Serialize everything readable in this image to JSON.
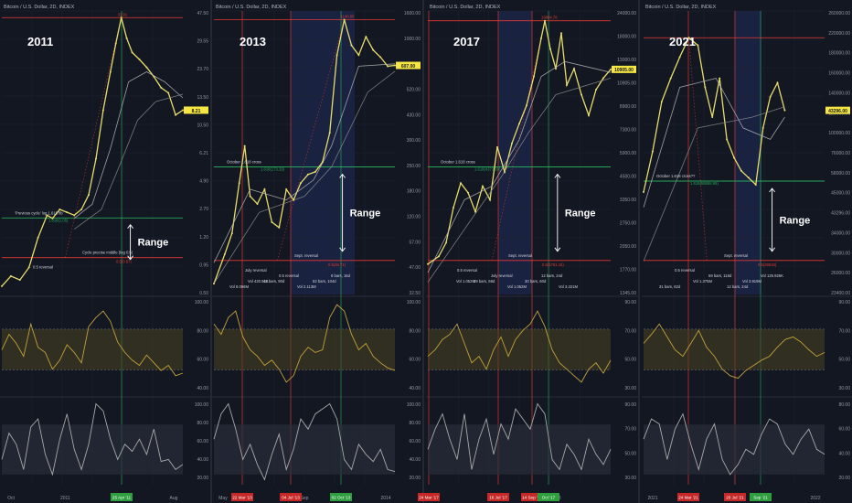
{
  "page": {
    "background": "#131722",
    "grid": "#1e2230"
  },
  "colors": {
    "price": "#e8dc6a",
    "ma_fast": "#b9b9b9",
    "ma_slow": "#8a8a8a",
    "rsi": "#c2a13a",
    "stoch": "#a9a9a9",
    "green_line": "#26a65b",
    "red_line": "#e53935",
    "highlight_band": "#1c2447",
    "rsi_band": "#4a4320",
    "stoch_band": "#2a2e39",
    "date_red": "#c62828",
    "date_green": "#2e9e3e"
  },
  "chart_data": [
    {
      "type": "line",
      "panel": "2011",
      "header": "Bitcoin / U.S. Dollar, 2D, INDEX",
      "year_label": "2011",
      "range_label": "Range",
      "price_axis": [
        "47.50",
        "29.55",
        "23.70",
        "13.50",
        "10.50",
        "6.21",
        "4.90",
        "2.70",
        "1.20",
        "0.95",
        "0.50"
      ],
      "price_tag": "8.21",
      "annotations": [
        "'Previous cycle' log 1.618 fib",
        "1.618(1.05)",
        "Cycle precise middle (log 0.5)",
        "0.5(0.57)",
        "0.5 reversal",
        "31.91"
      ],
      "rsi_axis": [
        "100.00",
        "80.00",
        "60.00",
        "40.00"
      ],
      "stoch_axis": [
        "100.00",
        "80.00",
        "60.00",
        "40.00",
        "20.00"
      ],
      "time_axis": [
        "Oct",
        "2011",
        "Mar",
        "Aug"
      ],
      "date_highlight": "25 Apr '11",
      "y_log_scale": true,
      "series": [
        {
          "name": "Price",
          "points": [
            [
              0,
              0.25
            ],
            [
              5,
              0.3
            ],
            [
              10,
              0.28
            ],
            [
              15,
              0.35
            ],
            [
              20,
              0.6
            ],
            [
              25,
              0.9
            ],
            [
              28,
              0.85
            ],
            [
              32,
              1.0
            ],
            [
              36,
              0.95
            ],
            [
              40,
              0.9
            ],
            [
              44,
              1.0
            ],
            [
              48,
              1.3
            ],
            [
              52,
              2.5
            ],
            [
              56,
              6.0
            ],
            [
              60,
              12.0
            ],
            [
              63,
              20.0
            ],
            [
              66,
              31.91
            ],
            [
              69,
              22.0
            ],
            [
              72,
              17.0
            ],
            [
              76,
              15.0
            ],
            [
              80,
              13.0
            ],
            [
              84,
              11.0
            ],
            [
              88,
              9.0
            ],
            [
              92,
              8.21
            ],
            [
              96,
              5.5
            ],
            [
              100,
              6.0
            ]
          ]
        },
        {
          "name": "MA fast",
          "points": [
            [
              40,
              0.85
            ],
            [
              50,
              1.1
            ],
            [
              60,
              3.0
            ],
            [
              70,
              10.0
            ],
            [
              80,
              12.0
            ],
            [
              90,
              10.0
            ],
            [
              100,
              7.5
            ]
          ]
        },
        {
          "name": "MA slow",
          "points": [
            [
              40,
              0.7
            ],
            [
              55,
              1.0
            ],
            [
              65,
              2.2
            ],
            [
              75,
              5.0
            ],
            [
              85,
              7.0
            ],
            [
              100,
              8.0
            ]
          ]
        }
      ],
      "rsi": [
        60,
        72,
        65,
        55,
        80,
        62,
        58,
        45,
        52,
        64,
        58,
        50,
        78,
        85,
        90,
        82,
        66,
        58,
        52,
        48,
        56,
        50,
        44,
        48,
        40,
        42
      ],
      "stoch": [
        40,
        66,
        55,
        30,
        72,
        80,
        45,
        25,
        60,
        85,
        50,
        30,
        55,
        95,
        88,
        60,
        40,
        55,
        48,
        60,
        45,
        70,
        38,
        40,
        30,
        35
      ]
    },
    {
      "type": "line",
      "panel": "2013",
      "header": "Bitcoin / U.S. Dollar, 2D, INDEX",
      "year_label": "2013",
      "range_label": "Range",
      "price_axis": [
        "1600.00",
        "1000.00",
        "607.00",
        "520.00",
        "430.00",
        "300.00",
        "250.00",
        "180.00",
        "120.00",
        "57.00",
        "47.00",
        "32.50"
      ],
      "price_tag": "607.00",
      "annotations": [
        "October 1.618 cross",
        "1.618(173.29)",
        "Sept. reversal",
        "0.5(46.71)",
        "July reversal",
        "0.5 reversal",
        "52 bars, 104d",
        "Vol 8.096M",
        "45 bars, 90d",
        "Vol 2.113M",
        "8 bars, 16d",
        "Vol 420.91K",
        "1140.00"
      ],
      "rsi_axis": [
        "100.00",
        "80.00",
        "60.00",
        "40.00"
      ],
      "stoch_axis": [
        "100.00",
        "80.00",
        "60.00",
        "40.00",
        "20.00"
      ],
      "time_axis": [
        "May",
        "Sep",
        "2014"
      ],
      "date_highlights": [
        "22 Mar '13",
        "04 Jul '13",
        "02 Oct '13"
      ],
      "y_log_scale": true,
      "series": [
        {
          "name": "Price",
          "points": [
            [
              0,
              30
            ],
            [
              6,
              45
            ],
            [
              10,
              60
            ],
            [
              14,
              120
            ],
            [
              17,
              200
            ],
            [
              20,
              100
            ],
            [
              24,
              90
            ],
            [
              28,
              110
            ],
            [
              32,
              70
            ],
            [
              36,
              65
            ],
            [
              40,
              110
            ],
            [
              44,
              95
            ],
            [
              48,
              120
            ],
            [
              52,
              135
            ],
            [
              56,
              140
            ],
            [
              60,
              160
            ],
            [
              64,
              240
            ],
            [
              68,
              700
            ],
            [
              72,
              1140
            ],
            [
              76,
              800
            ],
            [
              80,
              700
            ],
            [
              84,
              900
            ],
            [
              88,
              750
            ],
            [
              92,
              680
            ],
            [
              96,
              600
            ],
            [
              100,
              607
            ]
          ]
        },
        {
          "name": "MA fast",
          "points": [
            [
              0,
              40
            ],
            [
              20,
              110
            ],
            [
              40,
              95
            ],
            [
              55,
              125
            ],
            [
              65,
              200
            ],
            [
              80,
              600
            ],
            [
              100,
              620
            ]
          ]
        },
        {
          "name": "MA slow",
          "points": [
            [
              0,
              30
            ],
            [
              25,
              80
            ],
            [
              50,
              100
            ],
            [
              65,
              150
            ],
            [
              85,
              420
            ],
            [
              100,
              560
            ]
          ]
        }
      ],
      "rsi": [
        80,
        72,
        85,
        90,
        70,
        60,
        55,
        48,
        52,
        45,
        35,
        40,
        55,
        62,
        58,
        60,
        85,
        95,
        90,
        72,
        60,
        65,
        55,
        50,
        46,
        44
      ],
      "stoch": [
        60,
        85,
        95,
        70,
        40,
        55,
        35,
        20,
        45,
        65,
        30,
        50,
        80,
        70,
        85,
        90,
        95,
        80,
        40,
        30,
        55,
        45,
        38,
        50,
        30,
        28
      ]
    },
    {
      "type": "line",
      "panel": "2017",
      "header": "Bitcoin / U.S. Dollar, 2D, INDEX",
      "year_label": "2017",
      "range_label": "Range",
      "price_axis": [
        "24000.00",
        "18000.00",
        "13000.00",
        "10905.00",
        "8900.00",
        "7300.00",
        "5900.00",
        "4500.00",
        "3350.00",
        "2750.00",
        "2050.00",
        "1770.00",
        "1345.00"
      ],
      "price_tag": "10905.00",
      "annotations": [
        "October 1.618 cross",
        "1.618(4373.29)",
        "Sept. reversal",
        "0.5(1791.15)",
        "0.5 reversal",
        "July reversal",
        "30 bars, 60d",
        "Vol 3.221M",
        "29 bars, 58d",
        "Vol 1.052M",
        "12 bars, 24d",
        "Vol 1.052M",
        "19804.78"
      ],
      "rsi_axis": [
        "90.00",
        "70.00",
        "50.00",
        "30.00"
      ],
      "stoch_axis": [
        "90.00",
        "70.00",
        "50.00",
        "30.00"
      ],
      "time_axis": [
        "2018"
      ],
      "date_highlights": [
        "24 Mar '17",
        "16 Jul '17",
        "14 Sep '17",
        "Oct '17"
      ],
      "y_log_scale": true,
      "series": [
        {
          "name": "Price",
          "points": [
            [
              0,
              1000
            ],
            [
              6,
              1100
            ],
            [
              10,
              1300
            ],
            [
              14,
              2000
            ],
            [
              18,
              2700
            ],
            [
              22,
              2400
            ],
            [
              26,
              1900
            ],
            [
              30,
              2600
            ],
            [
              34,
              2200
            ],
            [
              38,
              4200
            ],
            [
              42,
              3100
            ],
            [
              46,
              4400
            ],
            [
              50,
              5600
            ],
            [
              54,
              7000
            ],
            [
              58,
              10000
            ],
            [
              62,
              16000
            ],
            [
              64,
              19804.78
            ],
            [
              67,
              14000
            ],
            [
              70,
              11000
            ],
            [
              73,
              17000
            ],
            [
              76,
              9000
            ],
            [
              80,
              11000
            ],
            [
              84,
              8000
            ],
            [
              88,
              6200
            ],
            [
              92,
              8500
            ],
            [
              96,
              9800
            ],
            [
              100,
              10905
            ]
          ]
        },
        {
          "name": "MA fast",
          "points": [
            [
              0,
              900
            ],
            [
              20,
              2200
            ],
            [
              35,
              2600
            ],
            [
              50,
              4600
            ],
            [
              62,
              10000
            ],
            [
              75,
              12000
            ],
            [
              100,
              10500
            ]
          ]
        },
        {
          "name": "MA slow",
          "points": [
            [
              0,
              800
            ],
            [
              25,
              1800
            ],
            [
              40,
              2900
            ],
            [
              55,
              5000
            ],
            [
              70,
              8000
            ],
            [
              100,
              9800
            ]
          ]
        }
      ],
      "rsi": [
        55,
        60,
        68,
        72,
        80,
        65,
        50,
        55,
        45,
        60,
        70,
        55,
        68,
        75,
        80,
        90,
        78,
        60,
        50,
        45,
        40,
        35,
        45,
        50,
        42,
        52
      ],
      "stoch": [
        50,
        70,
        85,
        60,
        40,
        85,
        30,
        60,
        80,
        45,
        75,
        60,
        90,
        80,
        70,
        95,
        85,
        40,
        30,
        55,
        45,
        30,
        60,
        45,
        35,
        50
      ]
    },
    {
      "type": "line",
      "panel": "2021",
      "header": "Bitcoin / U.S. Dollar, 2D, INDEX",
      "year_label": "2021",
      "range_label": "Range",
      "price_axis": [
        "260000.00",
        "220000.00",
        "180000.00",
        "160000.00",
        "140000.00",
        "120000.00",
        "100000.00",
        "76000.00",
        "58000.00",
        "45000.00",
        "43296.00",
        "34000.00",
        "30000.00",
        "26000.00",
        "23400.00"
      ],
      "price_tag": "43296.00",
      "annotations": [
        "October 1.618 cross??",
        "1.618(58866.95)",
        "Sept. reversal",
        "0.5(28918)",
        "0.5 reversal",
        "59 bars, 118d",
        "Vol 3.919M",
        "31 bars, 62d",
        "Vol 1.375M",
        "12 bars, 24d",
        "Vol 125.926K"
      ],
      "rsi_axis": [
        "90.00",
        "70.00",
        "50.00",
        "30.00"
      ],
      "stoch_axis": [
        "80.00",
        "60.00",
        "40.00",
        "20.00"
      ],
      "time_axis": [
        "2021",
        "2022"
      ],
      "date_highlights": [
        "24 Mar '21",
        "20 Jul '21",
        "Sep '21"
      ],
      "y_log_scale": true,
      "series": [
        {
          "name": "Price",
          "points": [
            [
              0,
              30000
            ],
            [
              5,
              36000
            ],
            [
              10,
              45000
            ],
            [
              15,
              50000
            ],
            [
              20,
              55000
            ],
            [
              25,
              60000
            ],
            [
              30,
              58000
            ],
            [
              34,
              48000
            ],
            [
              38,
              42000
            ],
            [
              42,
              50000
            ],
            [
              46,
              38000
            ],
            [
              50,
              35000
            ],
            [
              54,
              33000
            ],
            [
              58,
              32000
            ],
            [
              62,
              31000
            ],
            [
              66,
              40000
            ],
            [
              70,
              46000
            ],
            [
              74,
              49000
            ],
            [
              78,
              43296
            ]
          ]
        },
        {
          "name": "MA fast",
          "points": [
            [
              0,
              28000
            ],
            [
              20,
              48000
            ],
            [
              40,
              50000
            ],
            [
              55,
              40000
            ],
            [
              70,
              38000
            ],
            [
              78,
              42000
            ]
          ]
        },
        {
          "name": "MA slow",
          "points": [
            [
              0,
              22000
            ],
            [
              30,
              40000
            ],
            [
              60,
              42000
            ],
            [
              78,
              44000
            ]
          ]
        }
      ],
      "rsi": [
        65,
        72,
        80,
        70,
        60,
        55,
        65,
        75,
        62,
        55,
        45,
        40,
        38,
        44,
        48,
        52,
        55,
        62,
        68,
        70,
        66,
        60,
        55,
        58
      ],
      "stoch": [
        60,
        80,
        75,
        40,
        70,
        85,
        55,
        30,
        60,
        75,
        40,
        25,
        35,
        50,
        45,
        65,
        80,
        75,
        55,
        45,
        60,
        70,
        50,
        45
      ]
    }
  ]
}
